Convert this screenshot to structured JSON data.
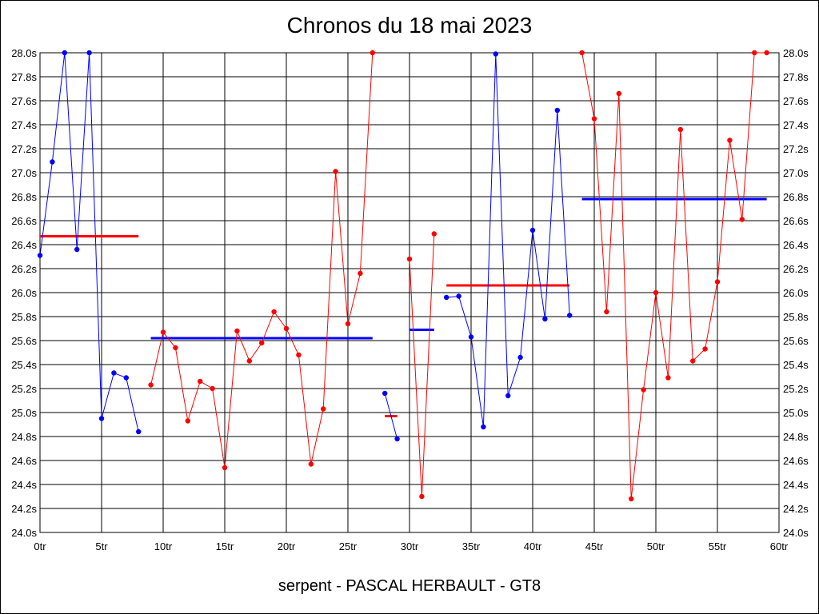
{
  "chart_data": {
    "type": "line",
    "title": "Chronos du 18 mai 2023",
    "subtitle": "serpent - PASCAL HERBAULT - GT8",
    "xlabel": "",
    "ylabel": "",
    "xlim": [
      0,
      60
    ],
    "ylim": [
      24.0,
      28.0
    ],
    "x_ticks": [
      0,
      5,
      10,
      15,
      20,
      25,
      30,
      35,
      40,
      45,
      50,
      55,
      60
    ],
    "x_tick_labels": [
      "0tr",
      "5tr",
      "10tr",
      "15tr",
      "20tr",
      "25tr",
      "30tr",
      "35tr",
      "40tr",
      "45tr",
      "50tr",
      "55tr",
      "60tr"
    ],
    "y_ticks": [
      24.0,
      24.2,
      24.4,
      24.6,
      24.8,
      25.0,
      25.2,
      25.4,
      25.6,
      25.8,
      26.0,
      26.2,
      26.4,
      26.6,
      26.8,
      27.0,
      27.2,
      27.4,
      27.6,
      27.8,
      28.0
    ],
    "y_tick_labels": [
      "24.0s",
      "24.2s",
      "24.4s",
      "24.6s",
      "24.8s",
      "25.0s",
      "25.2s",
      "25.4s",
      "25.6s",
      "25.8s",
      "26.0s",
      "26.2s",
      "26.4s",
      "26.6s",
      "26.8s",
      "27.0s",
      "27.2s",
      "27.4s",
      "27.6s",
      "27.8s",
      "28.0s"
    ],
    "grid": true,
    "colors": {
      "blue": "#0000ff",
      "red": "#ff0000"
    },
    "series": [
      {
        "color": "#0000ff",
        "x": [
          0,
          1,
          2,
          3,
          4,
          5,
          6,
          7,
          8
        ],
        "y": [
          26.31,
          27.09,
          28.0,
          26.36,
          28.0,
          24.95,
          25.33,
          25.29,
          24.84
        ]
      },
      {
        "color": "#ff0000",
        "x": [
          9,
          10,
          11,
          12,
          13,
          14,
          15,
          16,
          17,
          18,
          19,
          20,
          21,
          22,
          23,
          24,
          25,
          26,
          27
        ],
        "y": [
          25.23,
          25.67,
          25.54,
          24.93,
          25.26,
          25.2,
          24.54,
          25.68,
          25.43,
          25.58,
          25.84,
          25.7,
          25.48,
          24.57,
          25.03,
          27.01,
          25.74,
          26.16,
          28.0
        ]
      },
      {
        "color": "#0000ff",
        "x": [
          28,
          29
        ],
        "y": [
          25.16,
          24.78
        ]
      },
      {
        "color": "#ff0000",
        "x": [
          30,
          31,
          32
        ],
        "y": [
          26.28,
          24.3,
          26.49
        ]
      },
      {
        "color": "#0000ff",
        "x": [
          33,
          34,
          35,
          36,
          37,
          38,
          39,
          40,
          41,
          42,
          43
        ],
        "y": [
          25.96,
          25.97,
          25.63,
          24.88,
          27.99,
          25.14,
          25.46,
          26.52,
          25.78,
          27.52,
          25.81
        ]
      },
      {
        "color": "#ff0000",
        "x": [
          44,
          45,
          46,
          47,
          48,
          49,
          50,
          51,
          52,
          53,
          54,
          55,
          56,
          57,
          58,
          59
        ],
        "y": [
          28.0,
          27.45,
          25.84,
          27.66,
          24.28,
          25.19,
          26.0,
          25.29,
          27.36,
          25.43,
          25.53,
          26.09,
          27.27,
          26.61,
          28.0,
          28.0
        ]
      }
    ],
    "averages": [
      {
        "color": "#ff0000",
        "x_start": 0,
        "x_end": 8,
        "y": 26.47
      },
      {
        "color": "#0000ff",
        "x_start": 9,
        "x_end": 27,
        "y": 25.62
      },
      {
        "color": "#ff0000",
        "x_start": 28,
        "x_end": 29,
        "y": 24.97
      },
      {
        "color": "#0000ff",
        "x_start": 30,
        "x_end": 32,
        "y": 25.69
      },
      {
        "color": "#ff0000",
        "x_start": 33,
        "x_end": 43,
        "y": 26.06
      },
      {
        "color": "#0000ff",
        "x_start": 44,
        "x_end": 59,
        "y": 26.78
      }
    ]
  }
}
